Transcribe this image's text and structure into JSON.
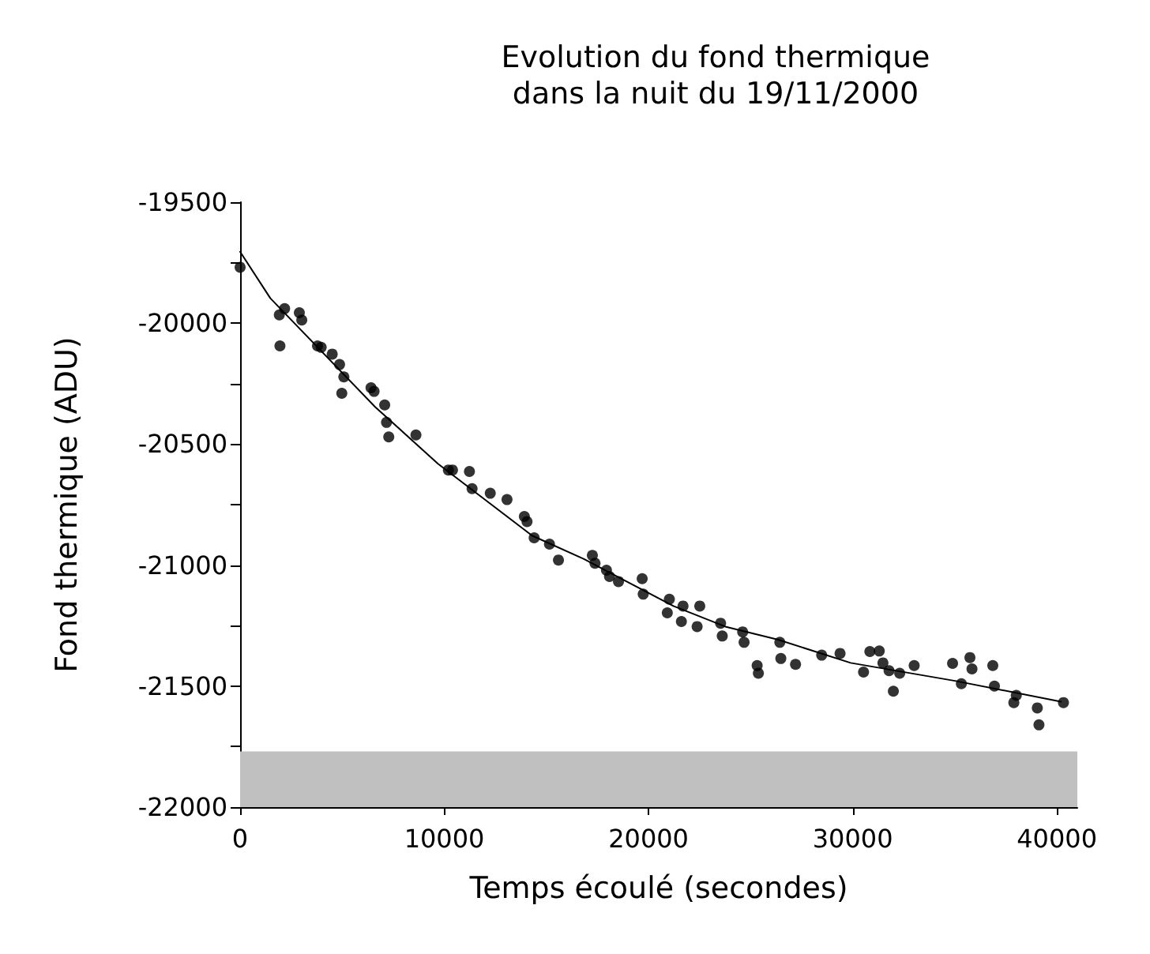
{
  "chart_data": {
    "type": "scatter",
    "title": "Evolution du fond thermique\ndans la nuit du 19/11/2000",
    "xlabel": "Temps écoulé (secondes)",
    "ylabel": "Fond thermique (ADU)",
    "xlim": [
      0,
      41000
    ],
    "xticks": [
      0,
      10000,
      20000,
      30000,
      40000
    ],
    "ylim": [
      -22000,
      -19500
    ],
    "yticks": [
      -22000,
      {
        "value": -21750,
        "label": null
      },
      -21500,
      {
        "value": -21250,
        "label": null
      },
      -21000,
      {
        "value": -20750,
        "label": null
      },
      -20500,
      {
        "value": -20250,
        "label": null
      },
      -20000,
      {
        "value": -19750,
        "label": null
      },
      -19500
    ],
    "grid": false,
    "bands": [
      {
        "axis": "y",
        "from": -22000,
        "to": -21770,
        "color": "#c0c0c0"
      }
    ],
    "series": [
      {
        "color": "#000000",
        "marker": "circle",
        "x": [
          0,
          1920,
          2180,
          1950,
          2900,
          3020,
          3790,
          3970,
          4510,
          4870,
          5080,
          4980,
          6410,
          6560,
          7080,
          7170,
          7280,
          8610,
          10200,
          10400,
          11230,
          11360,
          12250,
          13070,
          13920,
          14050,
          14400,
          15150,
          15590,
          17250,
          17380,
          17940,
          18530,
          18090,
          19690,
          19740,
          21020,
          20920,
          21690,
          21610,
          22380,
          22510,
          23530,
          23610,
          24610,
          24680,
          25320,
          25380,
          26430,
          26480,
          27200,
          28480,
          29380,
          30530,
          30840,
          31300,
          31480,
          31780,
          31990,
          32300,
          33010,
          34890,
          35320,
          35740,
          35840,
          36860,
          36940,
          38010,
          37890,
          39040,
          39120,
          40320
        ],
        "values": [
          -19769,
          -19966,
          -19940,
          -20094,
          -19957,
          -19987,
          -20094,
          -20100,
          -20128,
          -20171,
          -20222,
          -20290,
          -20267,
          -20282,
          -20338,
          -20410,
          -20470,
          -20462,
          -20607,
          -20607,
          -20613,
          -20684,
          -20703,
          -20729,
          -20799,
          -20820,
          -20887,
          -20913,
          -20979,
          -20960,
          -20992,
          -21021,
          -21068,
          -21047,
          -21056,
          -21120,
          -21141,
          -21197,
          -21169,
          -21233,
          -21254,
          -21169,
          -21240,
          -21293,
          -21276,
          -21319,
          -21415,
          -21447,
          -21319,
          -21386,
          -21410,
          -21372,
          -21365,
          -21442,
          -21357,
          -21355,
          -21404,
          -21436,
          -21521,
          -21447,
          -21415,
          -21406,
          -21490,
          -21382,
          -21429,
          -21415,
          -21500,
          -21538,
          -21568,
          -21590,
          -21660,
          -21568
        ]
      },
      {
        "type": "line",
        "color": "#000000",
        "marker": "none",
        "line_style": "solid",
        "x": [
          0,
          1480,
          6610,
          9690,
          14300,
          16840,
          21220,
          23760,
          26350,
          29900,
          35060,
          40200
        ],
        "values": [
          -19705,
          -19897,
          -20346,
          -20581,
          -20878,
          -20975,
          -21169,
          -21254,
          -21308,
          -21404,
          -21479,
          -21564
        ]
      }
    ]
  }
}
